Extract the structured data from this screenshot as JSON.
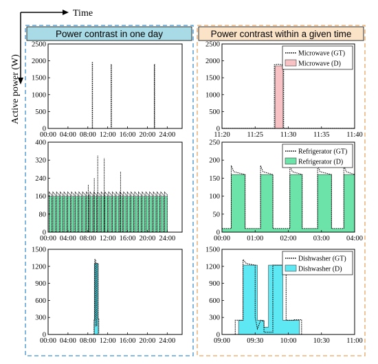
{
  "labels": {
    "time": "Time",
    "active_power": "Active power (W)",
    "left_header": "Power contrast in one day",
    "right_header": "Power contrast within a given time"
  },
  "colors": {
    "header_left_bg": "#a8dbe6",
    "header_right_bg": "#fbe3c8",
    "border_left": "#3b8fd0",
    "border_right": "#e9a45e",
    "microwave_fill": "#f8c2c4",
    "refrigerator_fill": "#6ce3a8",
    "dishwasher_fill": "#5ee8f4",
    "gt_line": "#000000"
  },
  "chart_data": [
    {
      "id": "day-microwave",
      "type": "line",
      "column": "left",
      "row": 0,
      "x_ticks": [
        "00:00",
        "04:00",
        "08:00",
        "12:00",
        "16:00",
        "20:00",
        "24:00"
      ],
      "x_range": [
        0,
        27
      ],
      "ylim": [
        0,
        2500
      ],
      "y_ticks": [
        0,
        500,
        1000,
        1500,
        2000,
        2500
      ],
      "legend": [],
      "series": [
        {
          "name": "GT",
          "style": "gt",
          "x": [
            0,
            8.9,
            8.9,
            8.95,
            8.95,
            12.7,
            12.7,
            12.75,
            12.75,
            21.4,
            21.4,
            21.45,
            21.45,
            27
          ],
          "y": [
            0,
            0,
            1950,
            1950,
            0,
            0,
            1900,
            1900,
            0,
            0,
            1900,
            1900,
            0,
            0
          ]
        }
      ]
    },
    {
      "id": "window-microwave",
      "type": "area",
      "column": "right",
      "row": 0,
      "x_ticks": [
        "11:20",
        "11:25",
        "11:30",
        "11:35",
        "11:40"
      ],
      "x_range": [
        0,
        20
      ],
      "ylim": [
        0,
        2500
      ],
      "y_ticks": [
        0,
        500,
        1000,
        1500,
        2000,
        2500
      ],
      "legend": [
        "Microwave (GT)",
        "Microwave (D)"
      ],
      "series": [
        {
          "name": "Microwave (D)",
          "style": "fill-pink",
          "x": [
            0,
            8.0,
            8.0,
            9.2,
            9.2,
            20
          ],
          "y": [
            0,
            0,
            1850,
            1850,
            0,
            0
          ]
        },
        {
          "name": "Microwave (GT)",
          "style": "gt",
          "x": [
            0,
            7.9,
            7.9,
            8.5,
            9.3,
            9.3,
            20
          ],
          "y": [
            5,
            5,
            1880,
            1900,
            1870,
            5,
            5
          ]
        }
      ]
    },
    {
      "id": "day-refrigerator",
      "type": "area",
      "column": "left",
      "row": 1,
      "x_ticks": [
        "00:00",
        "04:00",
        "08:00",
        "12:00",
        "16:00",
        "20:00",
        "24:00"
      ],
      "x_range": [
        0,
        27
      ],
      "ylim": [
        0,
        400
      ],
      "y_ticks": [
        0,
        80,
        160,
        240,
        320,
        400
      ],
      "legend": [],
      "cycles": {
        "start": 0.2,
        "period": 0.75,
        "on": 0.55,
        "level_fill": 160,
        "level_gt": 175,
        "count": 32
      },
      "spikes": [
        {
          "x": 10.0,
          "y": 340
        },
        {
          "x": 11.3,
          "y": 330
        },
        {
          "x": 14.6,
          "y": 270
        },
        {
          "x": 8.1,
          "y": 210
        },
        {
          "x": 9.3,
          "y": 240
        }
      ]
    },
    {
      "id": "window-refrigerator",
      "type": "area",
      "column": "right",
      "row": 1,
      "x_ticks": [
        "00:00",
        "01:00",
        "02:00",
        "03:00",
        "04:00"
      ],
      "x_range": [
        0,
        4.3
      ],
      "ylim": [
        0,
        250
      ],
      "y_ticks": [
        0,
        50,
        100,
        150,
        200,
        250
      ],
      "legend": [
        "Refrigerator (GT)",
        "Refrigerator (D)"
      ],
      "on_intervals": [
        [
          0.3,
          0.75
        ],
        [
          1.25,
          1.65
        ],
        [
          2.2,
          2.6
        ],
        [
          3.1,
          3.55
        ],
        [
          3.95,
          4.3
        ]
      ],
      "base": 10,
      "level": 160,
      "peak": 185
    },
    {
      "id": "day-dishwasher",
      "type": "area",
      "column": "left",
      "row": 2,
      "x_ticks": [
        "00:00",
        "04:00",
        "08:00",
        "12:00",
        "16:00",
        "20:00",
        "24:00"
      ],
      "x_range": [
        0,
        27
      ],
      "ylim": [
        0,
        1500
      ],
      "y_ticks": [
        0,
        300,
        600,
        900,
        1200,
        1500
      ],
      "legend": [],
      "series": [
        {
          "name": "D",
          "style": "fill-cyan",
          "x": [
            0,
            9.3,
            9.3,
            10.1,
            10.1,
            27
          ],
          "y": [
            0,
            0,
            1250,
            1250,
            0,
            0
          ]
        },
        {
          "name": "GT",
          "style": "gt",
          "x": [
            0,
            9.25,
            9.25,
            9.4,
            9.4,
            9.6,
            9.6,
            9.8,
            9.8,
            10.05,
            10.05,
            10.2,
            10.2,
            27
          ],
          "y": [
            0,
            0,
            250,
            250,
            1320,
            1320,
            150,
            150,
            1250,
            1250,
            270,
            270,
            0,
            0
          ]
        }
      ]
    },
    {
      "id": "window-dishwasher",
      "type": "area",
      "column": "right",
      "row": 2,
      "x_ticks": [
        "09:00",
        "09:30",
        "10:00",
        "10:30",
        "11:00"
      ],
      "x_range": [
        0,
        120
      ],
      "ylim": [
        0,
        1500
      ],
      "y_ticks": [
        0,
        300,
        600,
        900,
        1200,
        1500
      ],
      "legend": [
        "Dishwasher (GT)",
        "Dishwasher (D)"
      ],
      "series": [
        {
          "name": "Dishwasher (D)",
          "style": "fill-cyan",
          "x": [
            0,
            15,
            15,
            19,
            19,
            32,
            32,
            38,
            38,
            42,
            42,
            55,
            55,
            70,
            70,
            120
          ],
          "y": [
            0,
            0,
            250,
            250,
            1220,
            1220,
            250,
            250,
            130,
            130,
            1220,
            1220,
            250,
            250,
            0,
            0
          ]
        },
        {
          "name": "Dishwasher (GT)",
          "style": "gt",
          "x": [
            0,
            12,
            12,
            19,
            19,
            22,
            30,
            30,
            32,
            35,
            38,
            38,
            46,
            46,
            58,
            58,
            65,
            65,
            72,
            72,
            120
          ],
          "y": [
            0,
            0,
            250,
            250,
            1320,
            1250,
            1220,
            300,
            100,
            250,
            230,
            40,
            40,
            1220,
            1220,
            250,
            250,
            260,
            260,
            0,
            0
          ]
        }
      ]
    }
  ]
}
